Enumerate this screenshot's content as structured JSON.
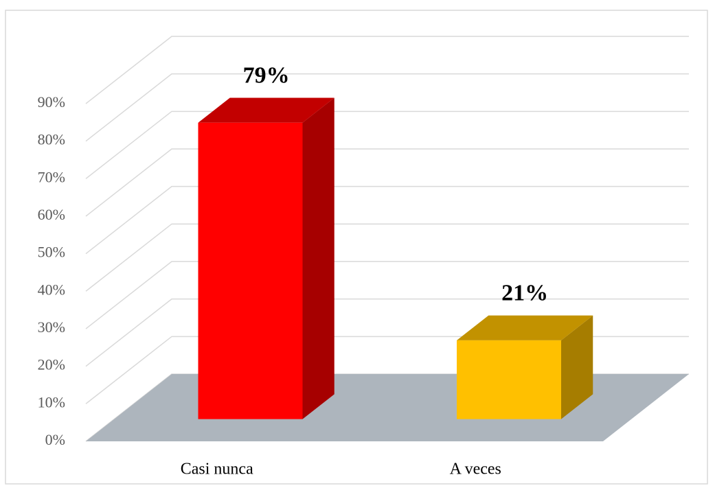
{
  "chart_data": {
    "type": "bar3d",
    "categories": [
      "Casi nunca",
      "A veces"
    ],
    "values": [
      79,
      21
    ],
    "value_labels": [
      "79%",
      "21%"
    ],
    "colors": [
      "#ff0000",
      "#ffc000"
    ],
    "ylim": [
      0,
      90
    ],
    "yticks": [
      {
        "value": 0,
        "label": "0%"
      },
      {
        "value": 10,
        "label": "10%"
      },
      {
        "value": 20,
        "label": "20%"
      },
      {
        "value": 30,
        "label": "30%"
      },
      {
        "value": 40,
        "label": "40%"
      },
      {
        "value": 50,
        "label": "50%"
      },
      {
        "value": 60,
        "label": "60%"
      },
      {
        "value": 70,
        "label": "70%"
      },
      {
        "value": 80,
        "label": "80%"
      },
      {
        "value": 90,
        "label": "90%"
      }
    ],
    "grid": true
  }
}
